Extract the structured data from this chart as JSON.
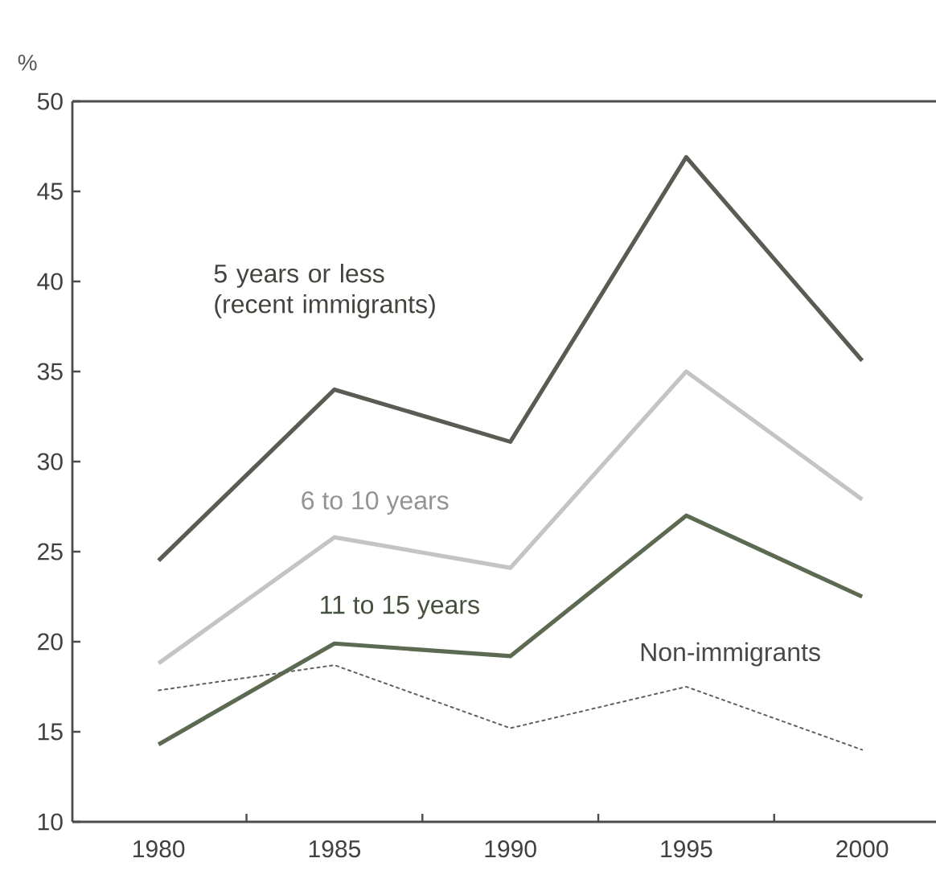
{
  "chart_data": {
    "type": "line",
    "ylabel": "%",
    "categories": [
      "1980",
      "1985",
      "1990",
      "1995",
      "2000"
    ],
    "ylim": [
      10,
      50
    ],
    "yticks": [
      10,
      15,
      20,
      25,
      30,
      35,
      40,
      45,
      50
    ],
    "grid": false,
    "legend": false,
    "marker": "none",
    "series": [
      {
        "name": "5 years or less (recent immigrants)",
        "color": "#585c52",
        "line_style": "solid",
        "values": [
          24.5,
          34.0,
          31.1,
          46.9,
          35.6
        ]
      },
      {
        "name": "6 to 10 years",
        "color": "#c4c4c2",
        "line_style": "solid",
        "values": [
          18.8,
          25.8,
          24.1,
          35.0,
          27.9
        ]
      },
      {
        "name": "11 to 15 years",
        "color": "#5c6a52",
        "line_style": "solid",
        "values": [
          14.3,
          19.9,
          19.2,
          27.0,
          22.5
        ]
      },
      {
        "name": "Non-immigrants",
        "color": "#606060",
        "line_style": "dotted",
        "values": [
          17.3,
          18.7,
          15.2,
          17.5,
          14.0
        ]
      }
    ]
  }
}
